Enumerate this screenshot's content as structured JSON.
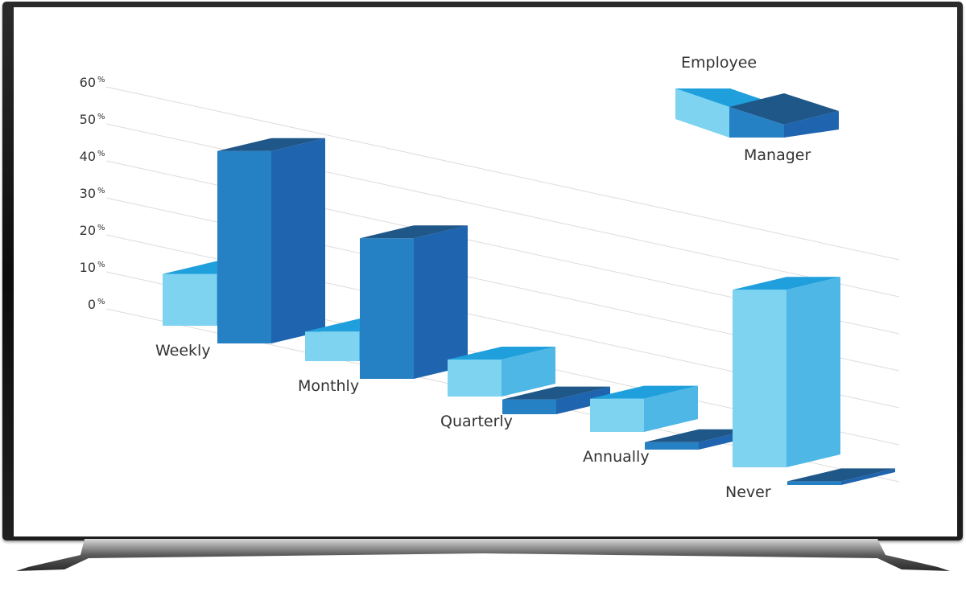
{
  "chart_data": {
    "type": "bar",
    "style": "3d-isometric",
    "categories": [
      "Weekly",
      "Monthly",
      "Quarterly",
      "Annually",
      "Never"
    ],
    "series": [
      {
        "name": "Employee",
        "values": [
          14,
          8,
          10,
          9,
          48
        ],
        "colors": {
          "front": "#7dd3f0",
          "side": "#4fb7e6",
          "top": "#1fa0dd"
        }
      },
      {
        "name": "Manager",
        "values": [
          52,
          38,
          4,
          2,
          1
        ],
        "colors": {
          "front": "#2680c4",
          "side": "#1e64ae",
          "top": "#1e5788"
        }
      }
    ],
    "y_ticks": [
      {
        "label": "60",
        "unit": "%"
      },
      {
        "label": "50",
        "unit": "%"
      },
      {
        "label": "40",
        "unit": "%"
      },
      {
        "label": "30",
        "unit": "%"
      },
      {
        "label": "20",
        "unit": "%"
      },
      {
        "label": "10",
        "unit": "%"
      },
      {
        "label": "0",
        "unit": "%"
      }
    ],
    "ylim": [
      0,
      60
    ],
    "grid": true,
    "legend": {
      "position": "top-right",
      "top_label": "Employee",
      "bottom_label": "Manager"
    }
  }
}
